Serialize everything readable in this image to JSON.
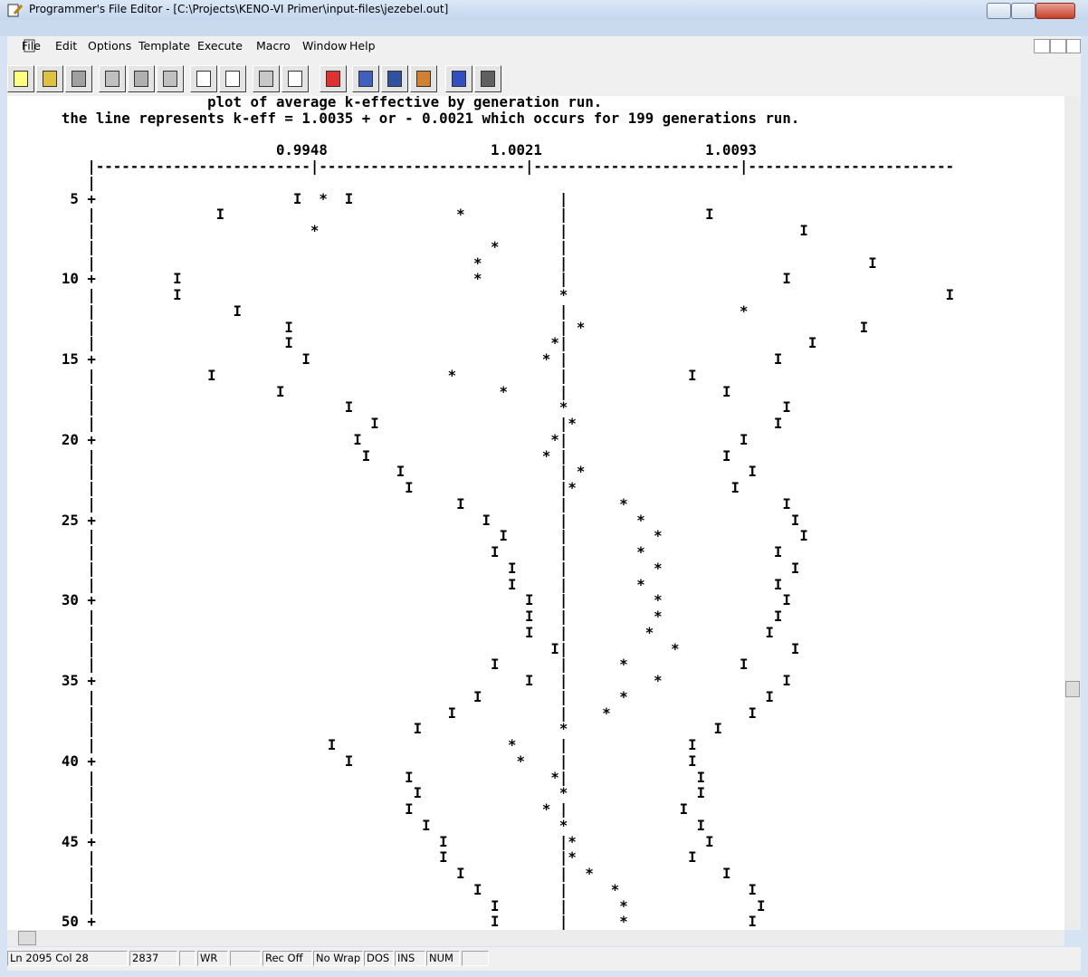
{
  "window": {
    "title": "Programmer's File Editor - [C:\\Projects\\KENO-VI Primer\\input-files\\jezebel.out]"
  },
  "menu": [
    "File",
    "Edit",
    "Options",
    "Template",
    "Execute",
    "Macro",
    "Window",
    "Help"
  ],
  "document": {
    "heading": [
      "                       plot of average k-effective by generation run.",
      "      the line represents k-eff = 1.0035 + or - 0.0021 which occurs for 199 generations run."
    ],
    "scale_labels": "                               0.9948                   1.0021                   1.0093",
    "scale_line": "         |-------------------------|------------------------|------------------------|------------------------",
    "rows": [
      "         |",
      "       5 +                       I  *  I                        |",
      "         |              I                           *           |                I",
      "         |                         *                            |                           I",
      "         |                                              *       |",
      "         |                                            *         |                                   I",
      "      10 +         I                                  *         |                         I",
      "         |         I                                            *                                            I",
      "         |                I                                     |                    *",
      "         |                      I                               | *                                I",
      "         |                      I                              *|                            I",
      "      15 +                        I                           * |                        I",
      "         |             I                           *            |              I",
      "         |                     I                         *      |                  I",
      "         |                             I                        *                         I",
      "         |                                I                     |*                       I",
      "      20 +                              I                      *|                    I",
      "         |                               I                    * |                  I",
      "         |                                   I                  | *                   I",
      "         |                                    I                 |*                  I",
      "         |                                          I           |      *                  I",
      "      25 +                                             I        |        *                 I",
      "         |                                               I      |          *                I",
      "         |                                              I       |        *               I",
      "         |                                                I     |          *               I",
      "         |                                                I     |        *               I",
      "      30 +                                                  I   |          *              I",
      "         |                                                  I   |          *             I",
      "         |                                                  I   |         *             I",
      "         |                                                     I|            *             I",
      "         |                                              I       |      *             I",
      "      35 +                                                  I   |          *              I",
      "         |                                            I         |      *                I",
      "         |                                         I            |    *                I",
      "         |                                     I                *                 I",
      "         |                           I                    *     |              I",
      "      40 +                             I                   *    |              I",
      "         |                                    I                *|               I",
      "         |                                     I                *               I",
      "         |                                    I               * |             I",
      "         |                                      I               *               I",
      "      45 +                                        I             |*               I",
      "         |                                        I             |*             I",
      "         |                                          I           |  *               I",
      "         |                                            I         |     *               I",
      "         |                                              I       |      *               I",
      "      50 +                                              I       |      *              I"
    ]
  },
  "status_bar": [
    "Ln 2095 Col 28",
    "2837",
    "WR",
    "Rec Off",
    "No Wrap",
    "DOS",
    "INS",
    "NUM"
  ]
}
